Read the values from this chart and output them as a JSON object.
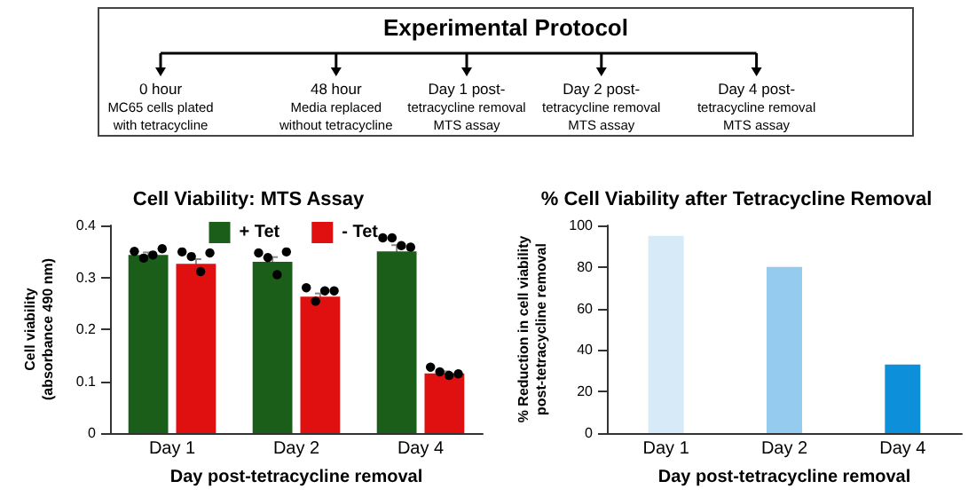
{
  "chart_data": [
    {
      "type": "other",
      "title": "Experimental Protocol",
      "annotations": [
        "0 hour\nMC65 cells plated\nwith tetracycline",
        "48 hour\nMedia replaced\nwithout tetracycline",
        "Day 1 post-\ntetracycline removal\nMTS assay",
        "Day 2 post-\ntetracycline removal\nMTS assay",
        "Day 4 post-\ntetracycline removal\nMTS assay"
      ]
    },
    {
      "type": "bar",
      "title": "Cell Viability: MTS Assay",
      "xlabel": "Day post-tetracycline removal",
      "ylabel": "Cell viability\n(absorbance 490 nm)",
      "categories": [
        "Day 1",
        "Day 2",
        "Day 4"
      ],
      "ylim": [
        0,
        0.4
      ],
      "yticks": [
        0,
        0.1,
        0.2,
        0.3,
        0.4
      ],
      "grid": false,
      "legend": "top right",
      "series": [
        {
          "name": "+ Tet",
          "color": "#1a5e1a",
          "values": [
            0.343,
            0.33,
            0.35
          ],
          "errors": [
            0.005,
            0.009,
            0.012
          ]
        },
        {
          "name": "- Tet",
          "color": "#e01010",
          "values": [
            0.326,
            0.263,
            0.115
          ],
          "errors": [
            0.009,
            0.006,
            0.004
          ]
        },
        {
          "type": "scatter",
          "color": "#000000",
          "x": [
            "Day 1",
            "Day 1",
            "Day 1",
            "Day 1",
            "Day 2",
            "Day 2",
            "Day 2",
            "Day 2",
            "Day 4",
            "Day 4",
            "Day 4",
            "Day 4"
          ],
          "values": [
            0.35,
            0.337,
            0.343,
            0.355,
            0.347,
            0.338,
            0.305,
            0.349,
            0.376,
            0.376,
            0.361,
            0.358
          ]
        },
        {
          "type": "scatter",
          "color": "#000000",
          "x": [
            "Day 1",
            "Day 1",
            "Day 1",
            "Day 1",
            "Day 2",
            "Day 2",
            "Day 2",
            "Day 2",
            "Day 4",
            "Day 4",
            "Day 4",
            "Day 4"
          ],
          "values": [
            0.349,
            0.34,
            0.311,
            0.347,
            0.28,
            0.254,
            0.274,
            0.274,
            0.127,
            0.118,
            0.111,
            0.114
          ]
        }
      ]
    },
    {
      "type": "bar",
      "title": "% Cell Viability after Tetracycline Removal",
      "xlabel": "Day post-tetracycline removal",
      "ylabel": "% Reduction in cell viability\npost-tetracycline removal",
      "categories": [
        "Day 1",
        "Day 2",
        "Day 4"
      ],
      "values": [
        95,
        80,
        33
      ],
      "colors": [
        "#d6eaf8",
        "#94cbee",
        "#0e8fd9"
      ],
      "ylim": [
        0,
        100
      ],
      "yticks": [
        0,
        20,
        40,
        60,
        80,
        100
      ],
      "grid": false,
      "legend": false
    }
  ]
}
